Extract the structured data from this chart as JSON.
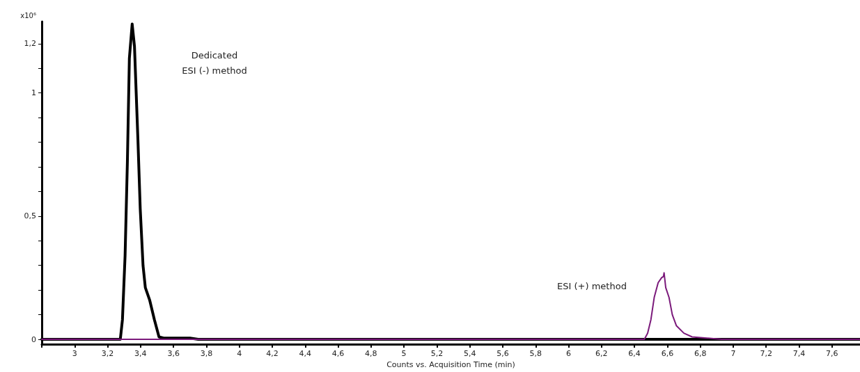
{
  "chart_data": {
    "type": "line",
    "xlabel": "Counts vs. Acquisition Time (min)",
    "ylabel": "x10⁶",
    "xlim": [
      2.8,
      7.77
    ],
    "ylim": [
      -0.02,
      1.29
    ],
    "xticks": [
      {
        "value": 2.8,
        "label": null
      },
      3,
      {
        "value": 3.2,
        "label": "3,2"
      },
      {
        "value": 3.4,
        "label": "3,4"
      },
      {
        "value": 3.6,
        "label": "3,6"
      },
      {
        "value": 3.8,
        "label": "3,8"
      },
      4,
      {
        "value": 4.2,
        "label": "4,2"
      },
      {
        "value": 4.4,
        "label": "4,4"
      },
      {
        "value": 4.6,
        "label": "4,6"
      },
      {
        "value": 4.8,
        "label": "4,8"
      },
      5,
      {
        "value": 5.2,
        "label": "5,2"
      },
      {
        "value": 5.4,
        "label": "5,4"
      },
      {
        "value": 5.6,
        "label": "5,6"
      },
      {
        "value": 5.8,
        "label": "5,8"
      },
      6,
      {
        "value": 6.2,
        "label": "6,2"
      },
      {
        "value": 6.4,
        "label": "6,4"
      },
      {
        "value": 6.6,
        "label": "6,6"
      },
      {
        "value": 6.8,
        "label": "6,8"
      },
      7,
      {
        "value": 7.2,
        "label": "7,2"
      },
      {
        "value": 7.4,
        "label": "7,4"
      },
      {
        "value": 7.6,
        "label": "7,6"
      }
    ],
    "yticks": [
      0,
      {
        "value": 0.1,
        "label": null
      },
      {
        "value": 0.2,
        "label": null
      },
      {
        "value": 0.3,
        "label": null
      },
      {
        "value": 0.4,
        "label": null
      },
      {
        "value": 0.5,
        "label": "0,5"
      },
      {
        "value": 0.6,
        "label": null
      },
      {
        "value": 0.7,
        "label": null
      },
      {
        "value": 0.8,
        "label": null
      },
      {
        "value": 0.9,
        "label": null
      },
      1,
      {
        "value": 1.1,
        "label": null
      },
      {
        "value": 1.2,
        "label": "1,2"
      }
    ],
    "grid": false,
    "marker": "none",
    "line_style": "solid",
    "series": [
      {
        "color": "#000000",
        "x": [
          2.8,
          3.277,
          3.29,
          3.306,
          3.32,
          3.332,
          3.349,
          3.363,
          3.384,
          3.398,
          3.415,
          3.429,
          3.455,
          3.484,
          3.512,
          3.54,
          3.7,
          3.75,
          7.77
        ],
        "values": [
          0,
          0,
          0.08,
          0.34,
          0.72,
          1.14,
          1.28,
          1.19,
          0.81,
          0.53,
          0.3,
          0.21,
          0.16,
          0.08,
          0.01,
          0.005,
          0.005,
          0,
          0
        ]
      },
      {
        "color": "#7b1a7b",
        "x": [
          2.8,
          6.46,
          6.48,
          6.5,
          6.52,
          6.544,
          6.565,
          6.576,
          6.58,
          6.59,
          6.61,
          6.63,
          6.655,
          6.7,
          6.75,
          6.93,
          7.77
        ],
        "values": [
          0,
          0,
          0.025,
          0.08,
          0.17,
          0.23,
          0.25,
          0.255,
          0.27,
          0.21,
          0.17,
          0.1,
          0.055,
          0.025,
          0.01,
          0,
          0
        ]
      }
    ],
    "annotations": [
      "Dedicated\nESI (-) method",
      "ESI (+) method"
    ]
  }
}
